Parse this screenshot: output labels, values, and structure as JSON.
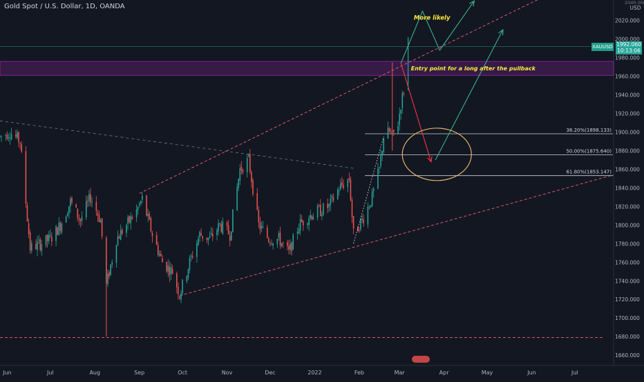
{
  "header": {
    "symbol_title": "Gold Spot / U.S. Dollar, 1D, OANDA",
    "currency": "USD",
    "currency_top_cut": "2040.000"
  },
  "price_tag": {
    "symbol": "XAUUSD",
    "last_price": "1992.060",
    "countdown": "10:13:06"
  },
  "annotations": {
    "more_likely": "More likely",
    "entry_point": "Entry point for a long after the pullback"
  },
  "fib_levels": [
    {
      "label": "38.20%(1898.133)",
      "price": 1898.133
    },
    {
      "label": "50.00%(1875.640)",
      "price": 1875.64
    },
    {
      "label": "61.80%(1853.147)",
      "price": 1853.147
    }
  ],
  "colors": {
    "background": "#131722",
    "up": "#26a69a",
    "down": "#ef5350",
    "zone": "#9c27b0",
    "fib": "#d1d4dc",
    "channel": "#f06373",
    "ellipse": "#f5c26b",
    "annotation_text": "#ffeb3b",
    "arrow_red": "#f23645",
    "arrow_green": "#3bb38f"
  },
  "chart_data": {
    "type": "candlestick",
    "title": "Gold Spot / U.S. Dollar, 1D, OANDA",
    "y_axis_label": "USD",
    "y_ticks": [
      1660,
      1680,
      1700,
      1720,
      1740,
      1760,
      1780,
      1800,
      1820,
      1840,
      1860,
      1880,
      1900,
      1920,
      1940,
      1960,
      1980,
      2000,
      2020
    ],
    "y_tick_labels": [
      "1660.000",
      "1680.000",
      "1700.000",
      "1720.000",
      "1740.000",
      "1760.000",
      "1780.000",
      "1800.000",
      "1820.000",
      "1840.000",
      "1860.000",
      "1880.000",
      "1900.000",
      "1920.000",
      "1940.000",
      "1960.000",
      "1980.000",
      "2000.000",
      "2020.000"
    ],
    "x_tick_labels": [
      "Jun",
      "Jul",
      "Aug",
      "Sep",
      "Oct",
      "Nov",
      "Dec",
      "2022",
      "Feb",
      "Mar",
      "Apr",
      "May",
      "Jun",
      "Jul"
    ],
    "x_range": [
      "2021-05-27",
      "2022-07-28"
    ],
    "y_range": [
      1649,
      2042
    ],
    "candle_path": [
      [
        "2021-05-27",
        1895
      ],
      [
        "2021-06-03",
        1900
      ],
      [
        "2021-06-10",
        1890
      ],
      [
        "2021-06-17",
        1775
      ],
      [
        "2021-06-24",
        1780
      ],
      [
        "2021-07-01",
        1785
      ],
      [
        "2021-07-08",
        1800
      ],
      [
        "2021-07-15",
        1825
      ],
      [
        "2021-07-22",
        1805
      ],
      [
        "2021-07-29",
        1830
      ],
      [
        "2021-08-05",
        1805
      ],
      [
        "2021-08-09",
        1735
      ],
      [
        "2021-08-16",
        1785
      ],
      [
        "2021-08-23",
        1800
      ],
      [
        "2021-08-30",
        1815
      ],
      [
        "2021-09-03",
        1828
      ],
      [
        "2021-09-10",
        1790
      ],
      [
        "2021-09-17",
        1760
      ],
      [
        "2021-09-24",
        1750
      ],
      [
        "2021-09-29",
        1725
      ],
      [
        "2021-10-06",
        1760
      ],
      [
        "2021-10-13",
        1790
      ],
      [
        "2021-10-20",
        1785
      ],
      [
        "2021-10-27",
        1800
      ],
      [
        "2021-11-03",
        1790
      ],
      [
        "2021-11-10",
        1860
      ],
      [
        "2021-11-16",
        1870
      ],
      [
        "2021-11-23",
        1800
      ],
      [
        "2021-11-30",
        1785
      ],
      [
        "2021-12-07",
        1785
      ],
      [
        "2021-12-14",
        1770
      ],
      [
        "2021-12-21",
        1800
      ],
      [
        "2021-12-28",
        1810
      ],
      [
        "2022-01-04",
        1815
      ],
      [
        "2022-01-11",
        1820
      ],
      [
        "2022-01-18",
        1840
      ],
      [
        "2022-01-25",
        1850
      ],
      [
        "2022-01-28",
        1790
      ],
      [
        "2022-02-04",
        1808
      ],
      [
        "2022-02-10",
        1830
      ],
      [
        "2022-02-15",
        1860
      ],
      [
        "2022-02-18",
        1895
      ],
      [
        "2022-02-22",
        1900
      ],
      [
        "2022-02-24",
        1895
      ],
      [
        "2022-02-28",
        1910
      ],
      [
        "2022-03-02",
        1930
      ],
      [
        "2022-03-04",
        1945
      ],
      [
        "2022-03-07",
        1992
      ]
    ],
    "horizontal_lines": [
      1679,
      1992.06
    ],
    "zone": [
      1961,
      1976
    ],
    "channel_upper": [
      [
        "2021-09-01",
        1834
      ],
      [
        "2022-07-28",
        2082
      ]
    ],
    "channel_lower": [
      [
        "2021-09-29",
        1724
      ],
      [
        "2022-07-28",
        1854
      ]
    ],
    "trendline_down": [
      [
        "2021-05-27",
        1912
      ],
      [
        "2022-01-28",
        1861
      ]
    ],
    "path_red": [
      [
        "2022-03-02",
        1974
      ],
      [
        "2022-03-23",
        1868
      ]
    ],
    "path_green": [
      [
        "2022-03-02",
        1974
      ],
      [
        "2022-03-17",
        2030
      ],
      [
        "2022-03-29",
        1988
      ],
      [
        "2022-04-22",
        2041
      ]
    ],
    "path_green_long": [
      [
        "2022-03-26",
        1870
      ],
      [
        "2022-05-12",
        2010
      ]
    ],
    "ellipse_center": [
      "2022-03-27",
      1876
    ]
  }
}
